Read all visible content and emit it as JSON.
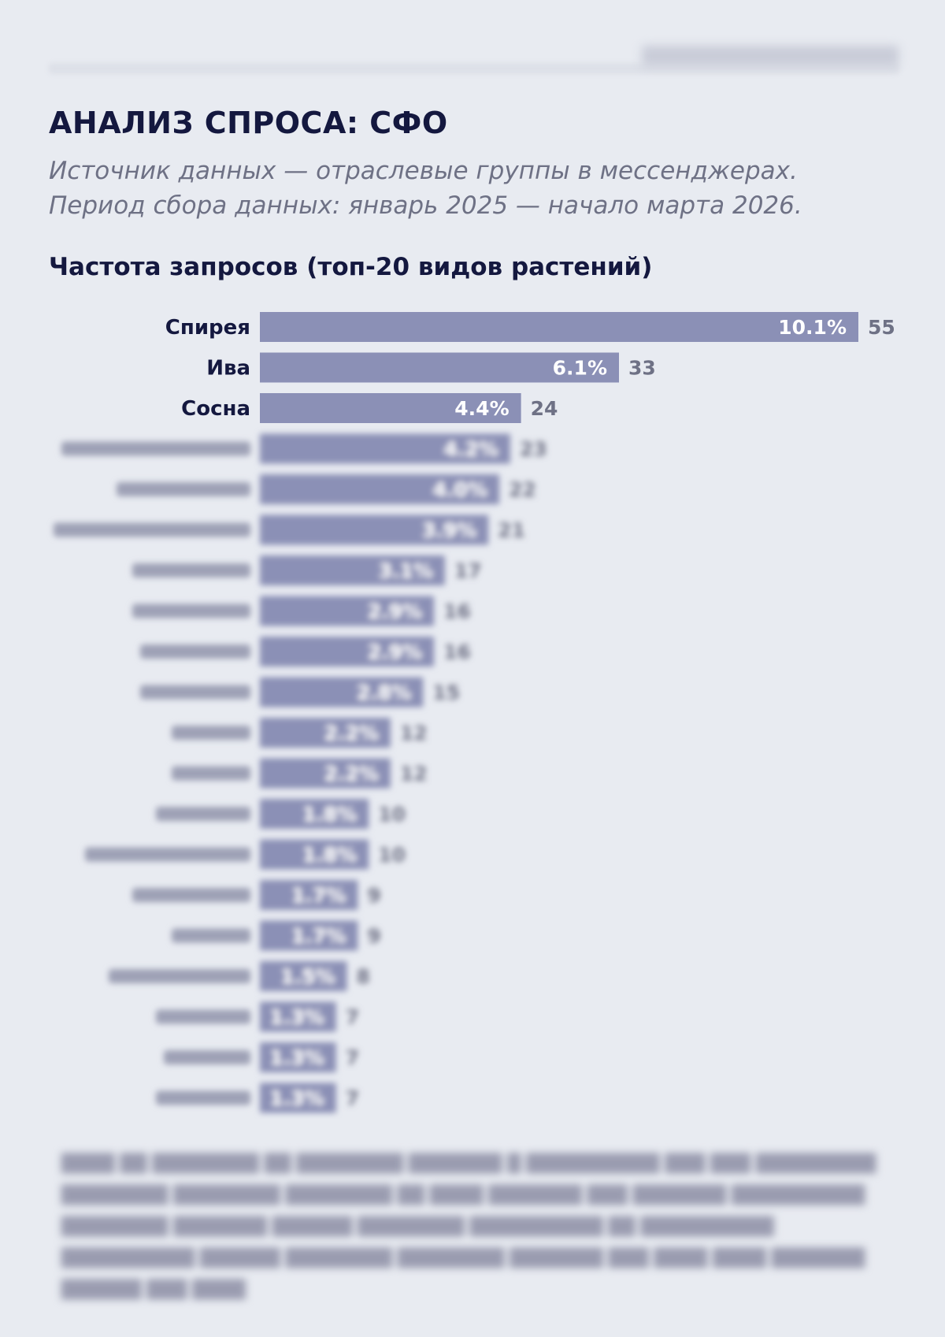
{
  "header": {
    "title": "АНАЛИЗ СПРОСА: СФО",
    "subtitle_line1": "Источник данных — отраслевые группы в мессенджерах.",
    "subtitle_line2": "Период сбора данных: январь 2025 — начало марта 2026."
  },
  "chart_data": {
    "type": "bar",
    "orientation": "horizontal",
    "title": "Частота запросов (топ-20 видов растений)",
    "categories": [
      "Спирея",
      "Ива",
      "Сосна",
      "",
      "",
      "",
      "",
      "",
      "",
      "",
      "",
      "",
      "",
      "",
      "",
      "",
      "",
      "",
      "",
      ""
    ],
    "values": [
      55,
      33,
      24,
      23,
      22,
      21,
      17,
      16,
      16,
      15,
      12,
      12,
      10,
      10,
      9,
      9,
      8,
      7,
      7,
      7
    ],
    "percent_labels": [
      "10.1%",
      "6.1%",
      "4.4%",
      "4.2%",
      "4.0%",
      "3.9%",
      "3.1%",
      "2.9%",
      "2.9%",
      "2.8%",
      "2.2%",
      "2.2%",
      "1.8%",
      "1.8%",
      "1.7%",
      "1.7%",
      "1.5%",
      "1.3%",
      "1.3%",
      "1.3%"
    ],
    "blurred_from_index": 3,
    "bar_color": "#8b90b6",
    "legend": "none",
    "grid": false
  },
  "colors": {
    "background": "#e8ebf1",
    "title": "#14183f",
    "subtitle": "#6e7185",
    "value_label": "#6e7185"
  }
}
